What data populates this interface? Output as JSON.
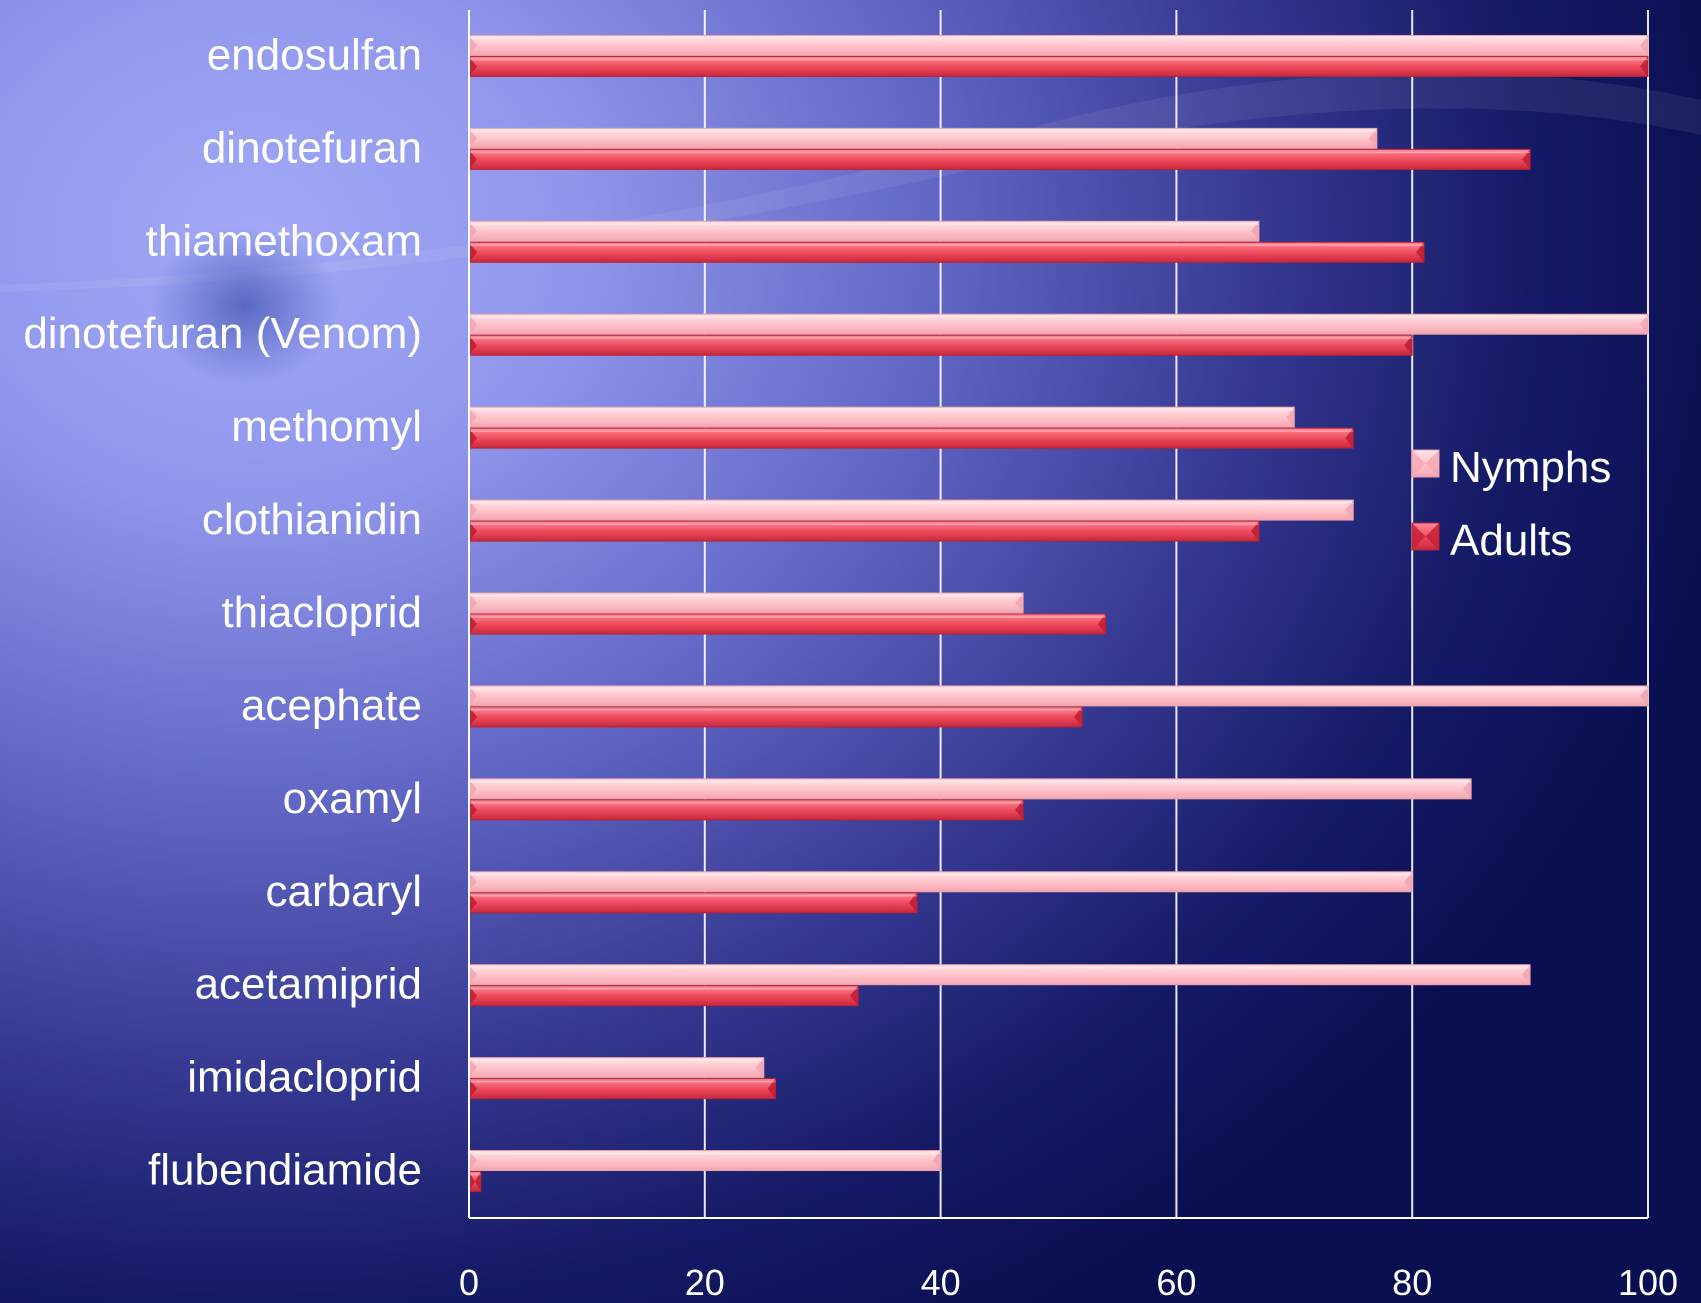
{
  "chart_data": {
    "type": "bar",
    "orientation": "horizontal",
    "categories": [
      "endosulfan",
      "dinotefuran",
      "thiamethoxam",
      "dinotefuran (Venom)",
      "methomyl",
      "clothianidin",
      "thiacloprid",
      "acephate",
      "oxamyl",
      "carbaryl",
      "acetamiprid",
      "imidacloprid",
      "flubendiamide"
    ],
    "series": [
      {
        "name": "Nymphs",
        "color": "#ffc6cc",
        "values": [
          100,
          77,
          67,
          100,
          70,
          75,
          47,
          100,
          85,
          80,
          90,
          25,
          40
        ]
      },
      {
        "name": "Adults",
        "color": "#ee4a5c",
        "values": [
          100,
          90,
          81,
          80,
          75,
          67,
          54,
          52,
          47,
          38,
          33,
          26,
          1
        ]
      }
    ],
    "xticks": [
      "0",
      "20",
      "40",
      "60",
      "80",
      "100"
    ],
    "xlim": [
      0,
      100
    ],
    "title": "",
    "xlabel": "",
    "ylabel": "",
    "grid": "vertical",
    "legend_position": "right"
  }
}
